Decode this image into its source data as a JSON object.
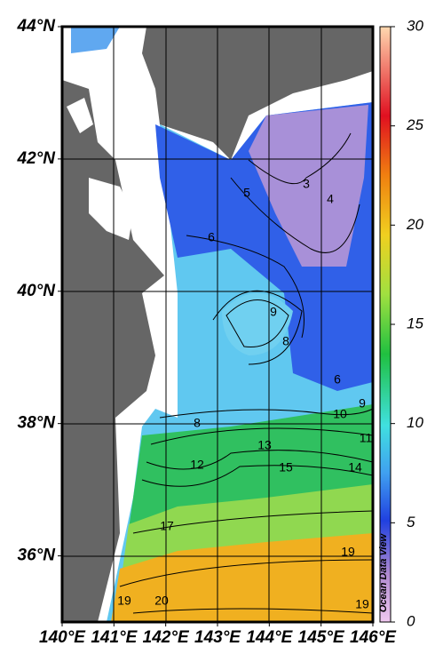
{
  "map": {
    "lat_labels": [
      {
        "value": 44,
        "label": "44°N"
      },
      {
        "value": 42,
        "label": "42°N"
      },
      {
        "value": 40,
        "label": "40°N"
      },
      {
        "value": 38,
        "label": "38°N"
      },
      {
        "value": 36,
        "label": "36°N"
      }
    ],
    "lon_labels": [
      {
        "value": 140,
        "label": "140°E"
      },
      {
        "value": 141,
        "label": "141°E"
      },
      {
        "value": 142,
        "label": "142°E"
      },
      {
        "value": 143,
        "label": "143°E"
      },
      {
        "value": 144,
        "label": "144°E"
      },
      {
        "value": 145,
        "label": "145°E"
      },
      {
        "value": 146,
        "label": "146°E"
      }
    ],
    "latlim": [
      35,
      44
    ],
    "lonlim": [
      140,
      146
    ],
    "colorbar": {
      "lim": [
        0,
        30
      ],
      "ticks": [
        0,
        5,
        10,
        15,
        20,
        25,
        30
      ]
    },
    "contour_labels": [
      3,
      4,
      5,
      6,
      9,
      8,
      6,
      9,
      10,
      11,
      8,
      13,
      12,
      15,
      14,
      17,
      19,
      19,
      20,
      19
    ],
    "credit": "Ocean Data View"
  }
}
